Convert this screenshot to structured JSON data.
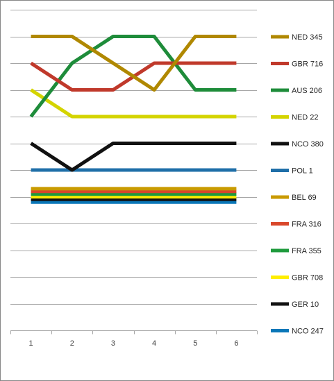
{
  "chart_data": {
    "type": "line",
    "x": [
      1,
      2,
      3,
      4,
      5,
      6
    ],
    "ylim": [
      1,
      13
    ],
    "y_reversed": true,
    "grid": true,
    "legend_position": "right",
    "series": [
      {
        "name": "NED 345",
        "color": "#b08800",
        "values": [
          2,
          2,
          3,
          4,
          2,
          2
        ]
      },
      {
        "name": "GBR 716",
        "color": "#c0392b",
        "values": [
          3,
          4,
          4,
          3,
          3,
          3
        ]
      },
      {
        "name": "AUS 206",
        "color": "#1e8c3a",
        "values": [
          5,
          3,
          2,
          2,
          4,
          4
        ]
      },
      {
        "name": "NED 22",
        "color": "#d4d400",
        "values": [
          4,
          5,
          5,
          5,
          5,
          5
        ]
      },
      {
        "name": "NCO 380",
        "color": "#111111",
        "values": [
          6,
          7,
          6,
          6,
          6,
          6
        ]
      },
      {
        "name": "POL 1",
        "color": "#1f6fa8",
        "values": [
          7,
          7,
          7,
          7,
          7,
          7
        ]
      },
      {
        "name": "BEL 69",
        "color": "#c99a00",
        "values": [
          7.7,
          7.7,
          7.7,
          7.7,
          7.7,
          7.7
        ]
      },
      {
        "name": "FRA 316",
        "color": "#d9472b",
        "values": [
          7.8,
          7.8,
          7.8,
          7.8,
          7.8,
          7.8
        ]
      },
      {
        "name": "FRA 355",
        "color": "#1e9a3c",
        "values": [
          7.9,
          7.9,
          7.9,
          7.9,
          7.9,
          7.9
        ]
      },
      {
        "name": "GBR 708",
        "color": "#ffee00",
        "values": [
          8.0,
          8.0,
          8.0,
          8.0,
          8.0,
          8.0
        ]
      },
      {
        "name": "GER 10",
        "color": "#111111",
        "values": [
          8.1,
          8.1,
          8.1,
          8.1,
          8.1,
          8.1
        ]
      },
      {
        "name": "NCO 247",
        "color": "#0a77b8",
        "values": [
          8.2,
          8.2,
          8.2,
          8.2,
          8.2,
          8.2
        ]
      }
    ]
  }
}
